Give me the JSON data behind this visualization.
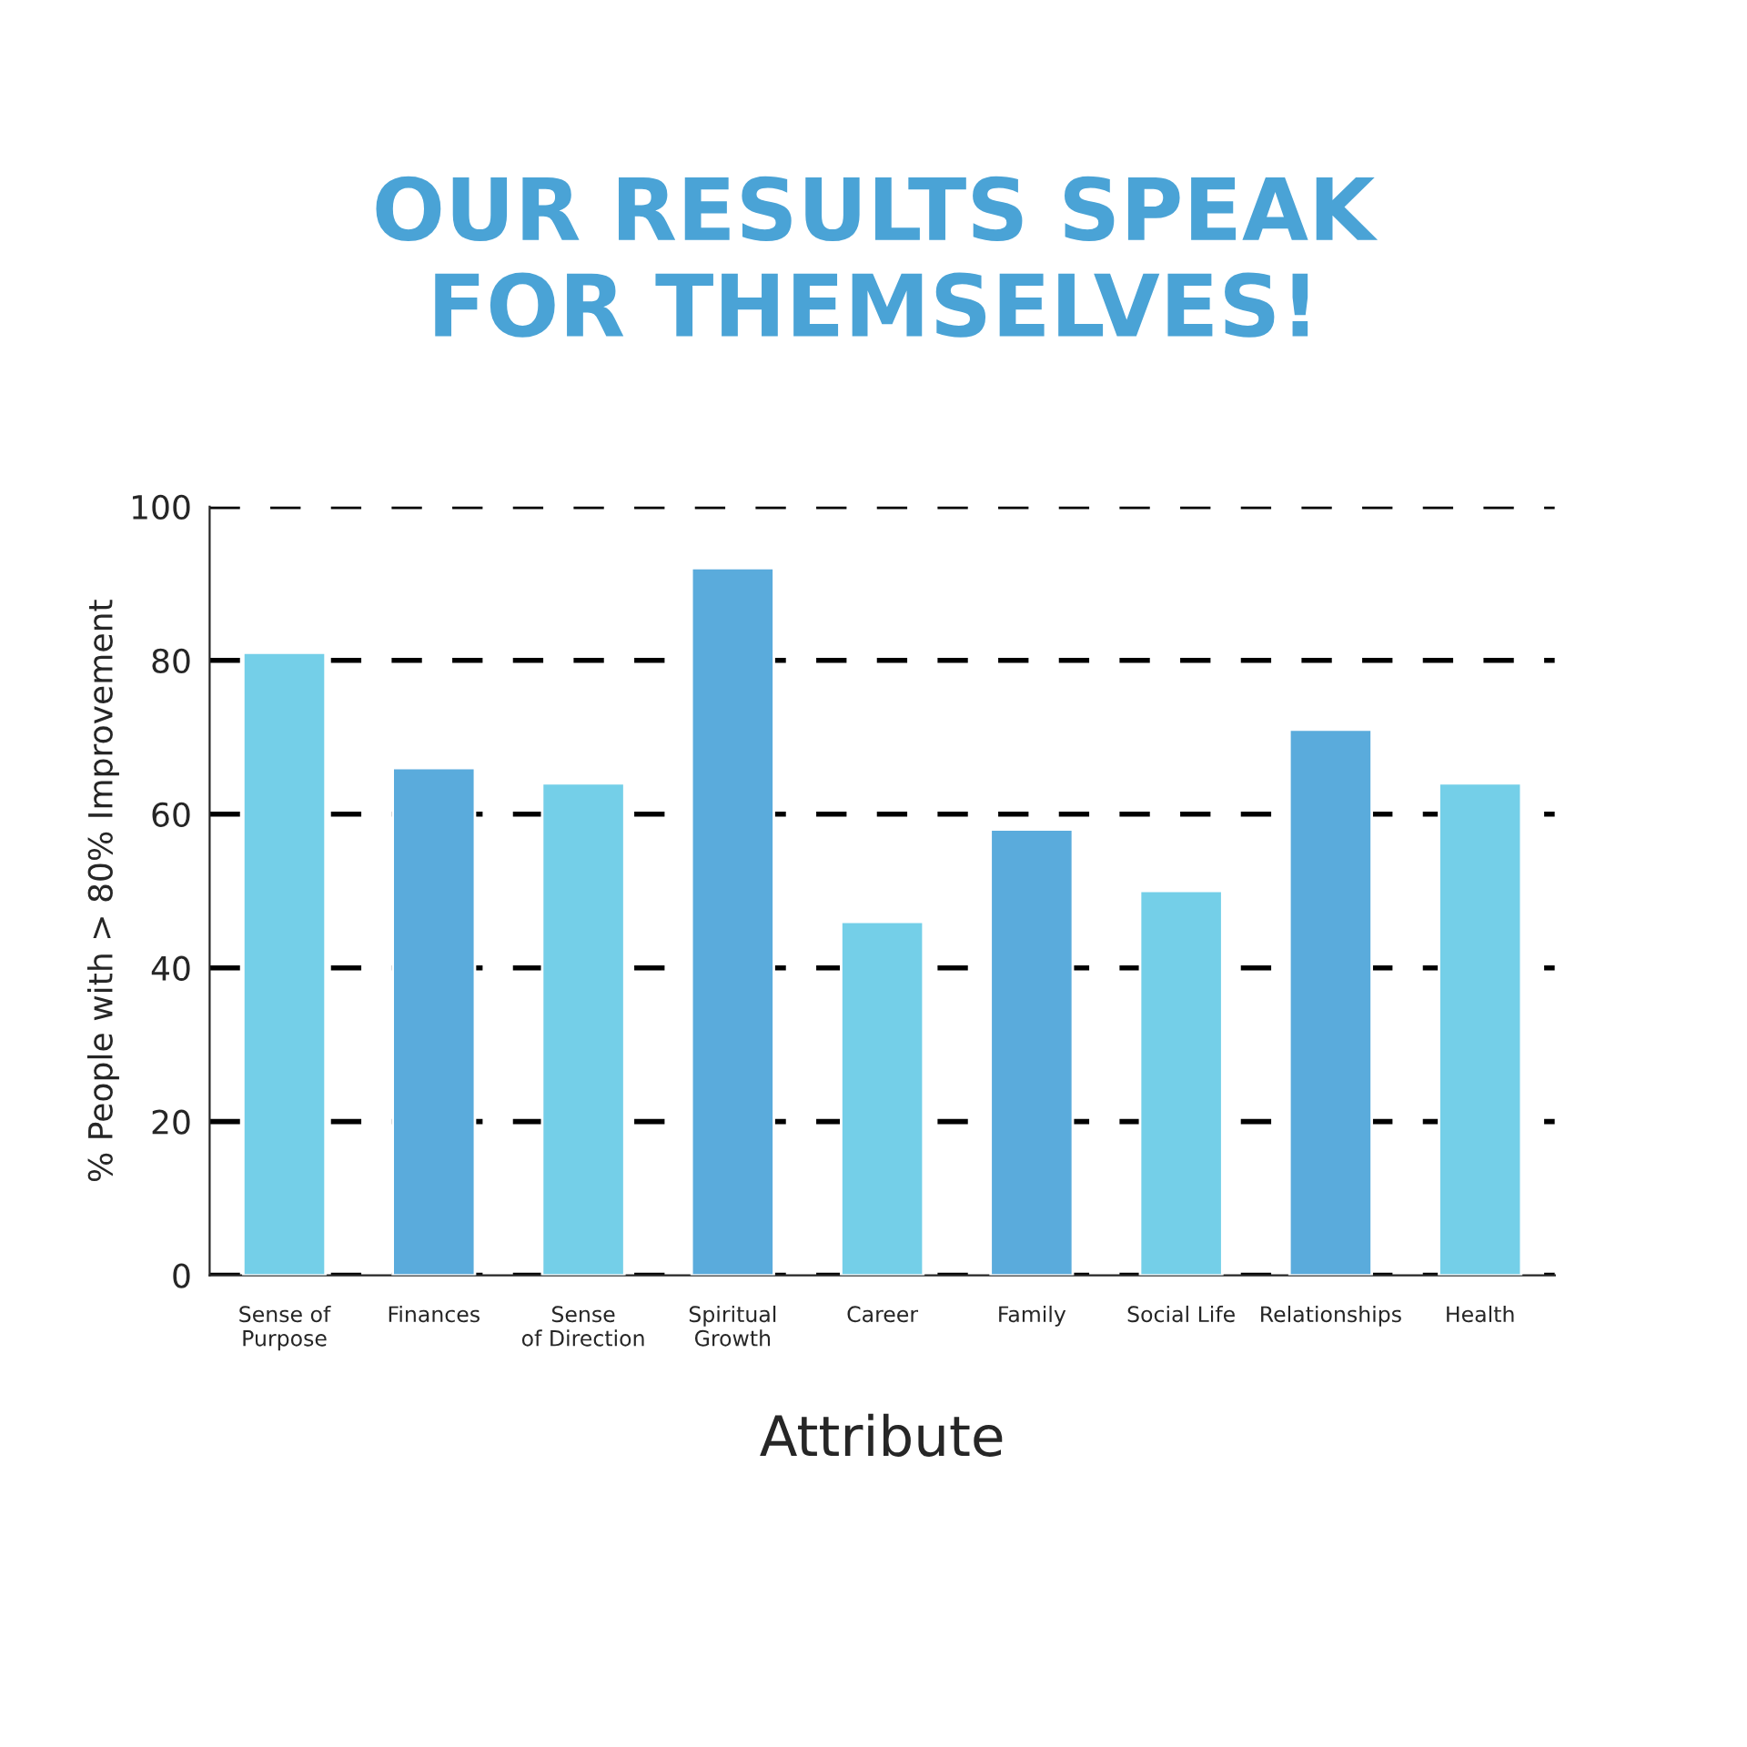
{
  "chart_data": {
    "type": "bar",
    "title": "OUR RESULTS SPEAK\nFOR THEMSELVES!",
    "xlabel": "Attribute",
    "ylabel": "% People with > 80% Improvement",
    "categories": [
      "Sense of\nPurpose",
      "Finances",
      "Sense\nof Direction",
      "Spiritual\nGrowth",
      "Career",
      "Family",
      "Social Life",
      "Relationships",
      "Health"
    ],
    "values": [
      81,
      66,
      64,
      92,
      46,
      58,
      50,
      71,
      64
    ],
    "colors": [
      "#74cfe8",
      "#5aabdc",
      "#74cfe8",
      "#5aabdc",
      "#74cfe8",
      "#5aabdc",
      "#74cfe8",
      "#5aabdc",
      "#74cfe8"
    ],
    "ylim": [
      0,
      100
    ],
    "yticks": [
      0,
      20,
      40,
      60,
      80,
      100
    ],
    "grid": "y"
  }
}
